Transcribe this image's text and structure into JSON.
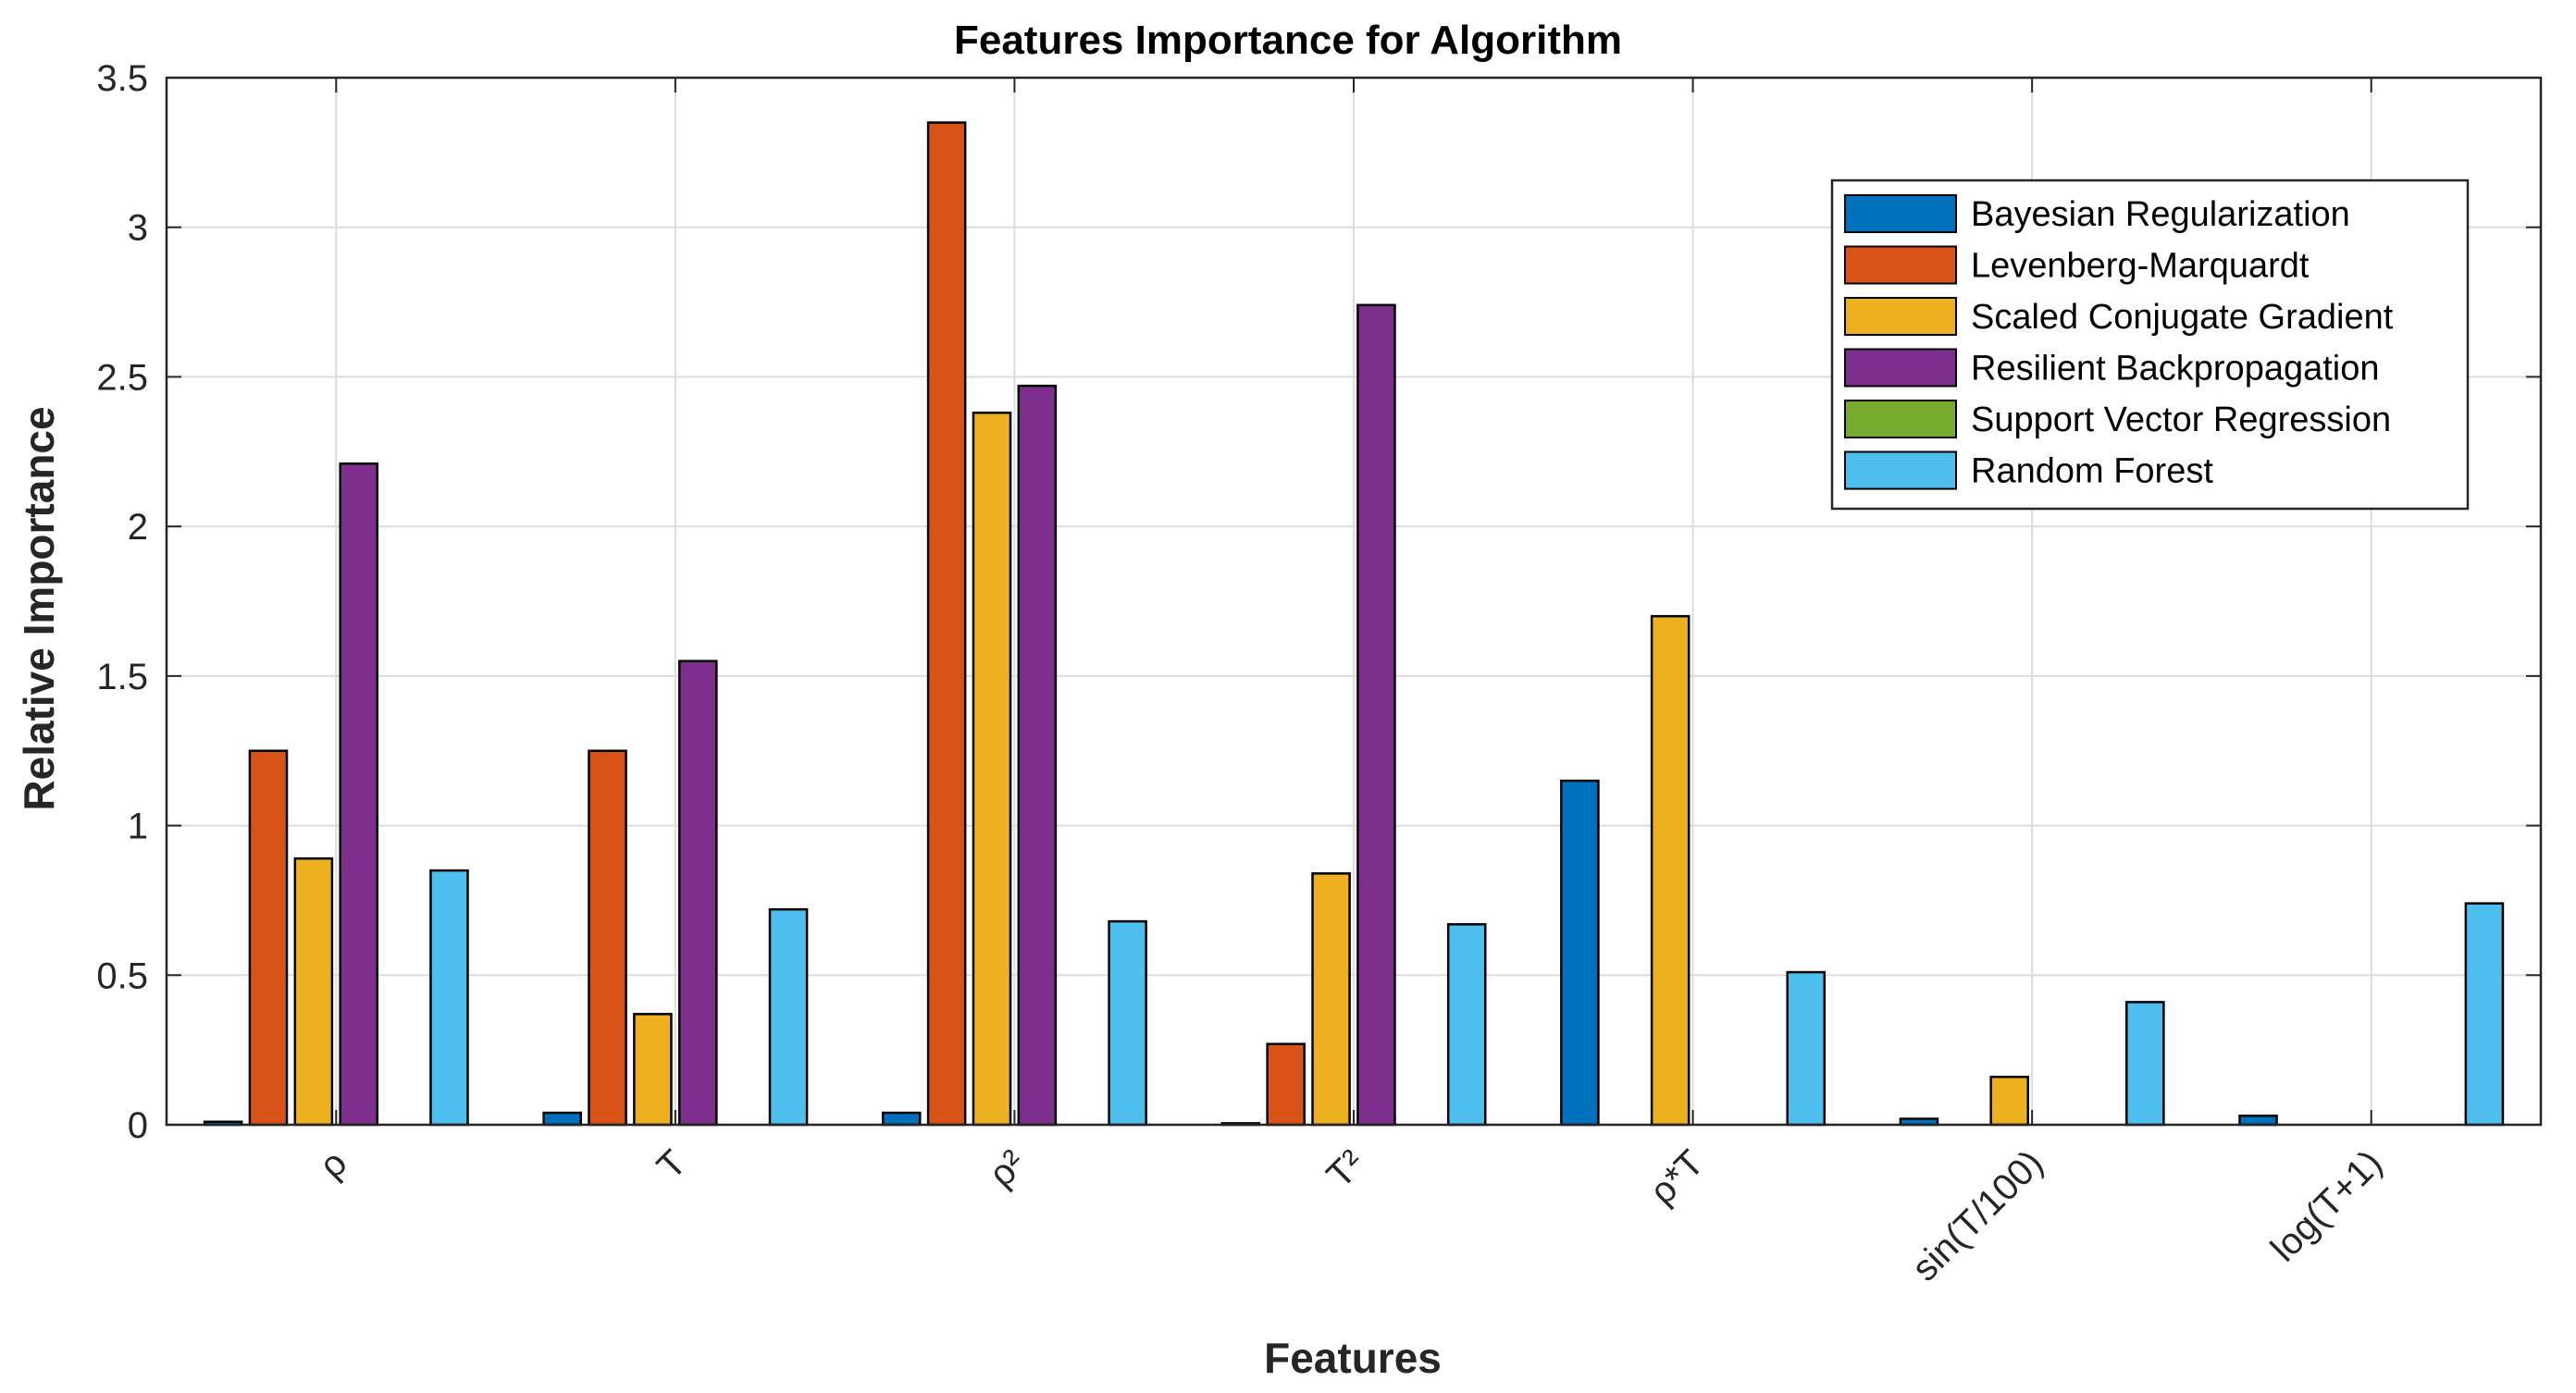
{
  "chart_data": {
    "type": "bar",
    "title": "Features Importance for Algorithm",
    "xlabel": "Features",
    "ylabel": "Relative Importance",
    "categories": [
      "ρ",
      "T",
      "ρ²",
      "T²",
      "ρ*T",
      "sin(T/100)",
      "log(T+1)"
    ],
    "ylim": [
      0,
      3.5
    ],
    "yticks": [
      "0",
      "0.5",
      "1",
      "1.5",
      "2",
      "2.5",
      "3",
      "3.5"
    ],
    "grid": true,
    "legend_position": "top-right",
    "series": [
      {
        "name": "Bayesian Regularization",
        "color": "#0072BD",
        "values": [
          0.01,
          0.04,
          0.04,
          0.005,
          1.15,
          0.02,
          0.03
        ]
      },
      {
        "name": "Levenberg-Marquardt",
        "color": "#D95319",
        "values": [
          1.25,
          1.25,
          3.35,
          0.27,
          0,
          0,
          0
        ]
      },
      {
        "name": "Scaled Conjugate Gradient",
        "color": "#EDB120",
        "values": [
          0.89,
          0.37,
          2.38,
          0.84,
          1.7,
          0.16,
          0
        ]
      },
      {
        "name": "Resilient Backpropagation",
        "color": "#7E2F8E",
        "values": [
          2.21,
          1.55,
          2.47,
          2.74,
          0,
          0,
          0
        ]
      },
      {
        "name": "Support Vector Regression",
        "color": "#77AC30",
        "values": [
          0,
          0,
          0,
          0,
          0,
          0,
          0
        ]
      },
      {
        "name": "Random Forest",
        "color": "#4DBEEE",
        "values": [
          0.85,
          0.72,
          0.68,
          0.67,
          0.51,
          0.41,
          0.74
        ]
      }
    ]
  }
}
